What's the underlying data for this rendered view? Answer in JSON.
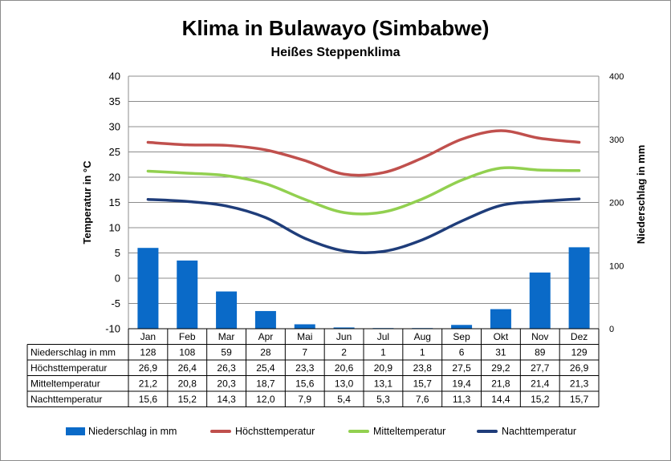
{
  "title": "Klima in Bulawayo (Simbabwe)",
  "subtitle": "Heißes Steppenklima",
  "chart_data": {
    "type": "bar+line",
    "title": "Klima in Bulawayo (Simbabwe)",
    "subtitle": "Heißes Steppenklima",
    "categories": [
      "Jan",
      "Feb",
      "Mar",
      "Apr",
      "Mai",
      "Jun",
      "Jul",
      "Aug",
      "Sep",
      "Okt",
      "Nov",
      "Dez"
    ],
    "ylabel_left": "Temperatur in °C",
    "ylabel_right": "Niederschlag in mm",
    "ylim_left": [
      -10,
      40
    ],
    "yticks_left": [
      "40",
      "35",
      "30",
      "25",
      "20",
      "15",
      "10",
      "5",
      "0",
      "-5",
      "-10"
    ],
    "ylim_right": [
      0,
      400
    ],
    "yticks_right": [
      "400",
      "300",
      "200",
      "100",
      "0"
    ],
    "grid": true,
    "legend_position": "bottom",
    "series": [
      {
        "name": "Niederschlag in mm",
        "type": "bar",
        "axis": "right",
        "color": "#0a6ac8",
        "values": [
          128,
          108,
          59,
          28,
          7,
          2,
          1,
          1,
          6,
          31,
          89,
          129
        ],
        "labels": [
          "128",
          "108",
          "59",
          "28",
          "7",
          "2",
          "1",
          "1",
          "6",
          "31",
          "89",
          "129"
        ]
      },
      {
        "name": "Höchsttemperatur",
        "type": "line",
        "axis": "left",
        "color": "#c0504d",
        "values": [
          26.9,
          26.4,
          26.3,
          25.4,
          23.3,
          20.6,
          20.9,
          23.8,
          27.5,
          29.2,
          27.7,
          26.9
        ],
        "labels": [
          "26,9",
          "26,4",
          "26,3",
          "25,4",
          "23,3",
          "20,6",
          "20,9",
          "23,8",
          "27,5",
          "29,2",
          "27,7",
          "26,9"
        ]
      },
      {
        "name": "Mitteltemperatur",
        "type": "line",
        "axis": "left",
        "color": "#92d050",
        "values": [
          21.2,
          20.8,
          20.3,
          18.7,
          15.6,
          13.0,
          13.1,
          15.7,
          19.4,
          21.8,
          21.4,
          21.3
        ],
        "labels": [
          "21,2",
          "20,8",
          "20,3",
          "18,7",
          "15,6",
          "13,0",
          "13,1",
          "15,7",
          "19,4",
          "21,8",
          "21,4",
          "21,3"
        ]
      },
      {
        "name": "Nachttemperatur",
        "type": "line",
        "axis": "left",
        "color": "#1f3d7a",
        "values": [
          15.6,
          15.2,
          14.3,
          12.0,
          7.9,
          5.4,
          5.3,
          7.6,
          11.3,
          14.4,
          15.2,
          15.7
        ],
        "labels": [
          "15,6",
          "15,2",
          "14,3",
          "12,0",
          "7,9",
          "5,4",
          "5,3",
          "7,6",
          "11,3",
          "14,4",
          "15,2",
          "15,7"
        ]
      }
    ]
  }
}
